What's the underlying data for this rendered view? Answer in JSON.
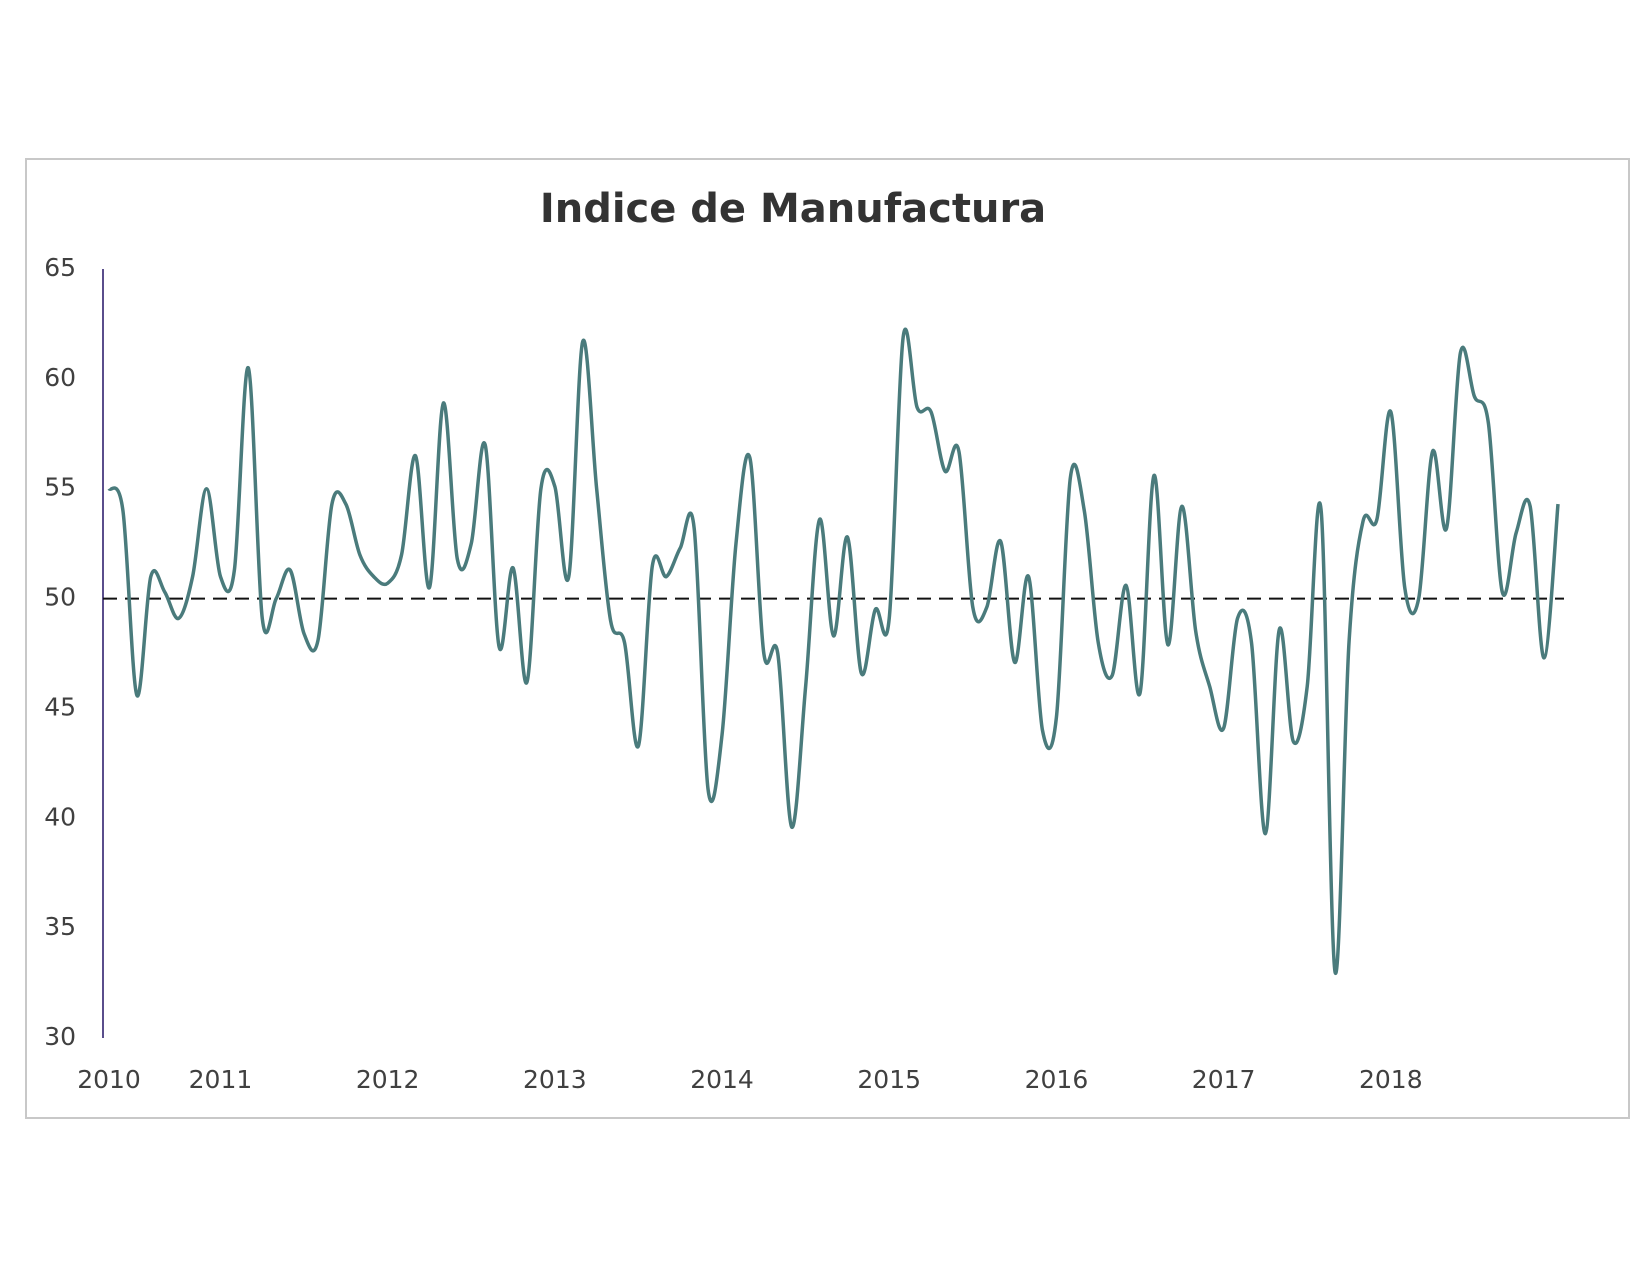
{
  "chart_data": {
    "type": "line",
    "title": "Indice de Manufactura",
    "categories": [
      "2010",
      null,
      null,
      null,
      null,
      null,
      null,
      null,
      "2011",
      null,
      null,
      null,
      null,
      null,
      null,
      null,
      null,
      null,
      null,
      null,
      "2012",
      null,
      null,
      null,
      null,
      null,
      null,
      null,
      null,
      null,
      null,
      null,
      "2013",
      null,
      null,
      null,
      null,
      null,
      null,
      null,
      null,
      null,
      null,
      null,
      "2014",
      null,
      null,
      null,
      null,
      null,
      null,
      null,
      null,
      null,
      null,
      null,
      "2015",
      null,
      null,
      null,
      null,
      null,
      null,
      null,
      null,
      null,
      null,
      null,
      "2016",
      null,
      null,
      null,
      null,
      null,
      null,
      null,
      null,
      null,
      null,
      null,
      "2017",
      null,
      null,
      null,
      null,
      null,
      null,
      null,
      null,
      null,
      null,
      null,
      "2018",
      null,
      null,
      null,
      null,
      null,
      null,
      null,
      null,
      null,
      null,
      null,
      null
    ],
    "series": [
      {
        "color": "#4a7b7c",
        "values": [
          55,
          54,
          45.6,
          51,
          50.3,
          49.1,
          51,
          55,
          51,
          51.3,
          60.5,
          49.1,
          50,
          51.3,
          48.4,
          48.1,
          54.3,
          54.3,
          52,
          51,
          50.7,
          52,
          56.5,
          50.5,
          58.9,
          51.8,
          52.5,
          57,
          47.8,
          51.4,
          46.2,
          55,
          55.1,
          51,
          61.7,
          55,
          49,
          48,
          43.3,
          51.5,
          51,
          52.3,
          53.2,
          41.3,
          43.8,
          52.5,
          56.4,
          47.5,
          47.5,
          39.6,
          46,
          53.6,
          48.3,
          52.8,
          46.6,
          49.5,
          49.1,
          61.9,
          58.7,
          58.5,
          55.8,
          56.7,
          49.6,
          49.6,
          52.6,
          47.1,
          51,
          44,
          44.6,
          55.5,
          54,
          48,
          46.5,
          50.6,
          45.7,
          55.6,
          47.9,
          54.2,
          48.5,
          46,
          44.1,
          49.1,
          48,
          39.3,
          48.6,
          43.5,
          46,
          54,
          33,
          48,
          53.5,
          53.6,
          58.5,
          50.5,
          50,
          56.7,
          53.2,
          61.2,
          59.2,
          58,
          50.3,
          53,
          54.2,
          47.3,
          54.3
        ]
      }
    ],
    "reference_line": 50,
    "ylim": [
      30,
      65
    ],
    "yticks": [
      30,
      35,
      40,
      45,
      50,
      55,
      60,
      65
    ],
    "grid": false
  }
}
